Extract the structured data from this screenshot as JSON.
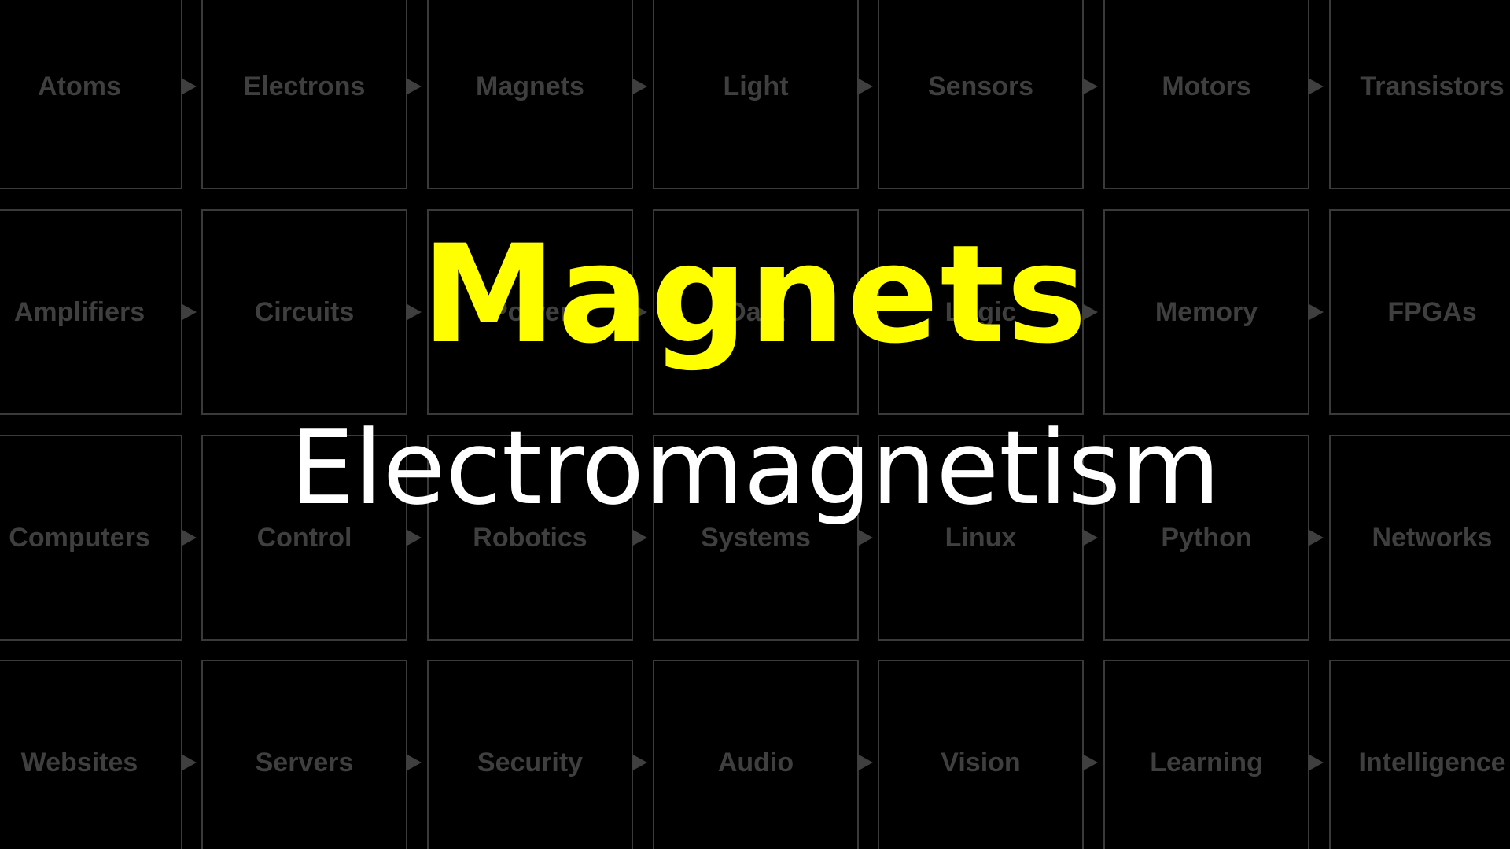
{
  "grid": {
    "rows": [
      [
        "Atoms",
        "Electrons",
        "Magnets",
        "Light",
        "Sensors",
        "Motors",
        "Transistors"
      ],
      [
        "Amplifiers",
        "Circuits",
        "Power",
        "Data",
        "Logic",
        "Memory",
        "FPGAs"
      ],
      [
        "Computers",
        "Control",
        "Robotics",
        "Systems",
        "Linux",
        "Python",
        "Networks"
      ],
      [
        "Websites",
        "Servers",
        "Security",
        "Audio",
        "Vision",
        "Learning",
        "Intelligence"
      ]
    ]
  },
  "title": {
    "main": "Magnets",
    "subtitle": "Electromagnetism"
  },
  "colors": {
    "background": "#000000",
    "title": "#ffff00",
    "subtitle": "#ffffff",
    "tile_border": "#3a3a3a",
    "tile_text": "#3f3f3f"
  }
}
